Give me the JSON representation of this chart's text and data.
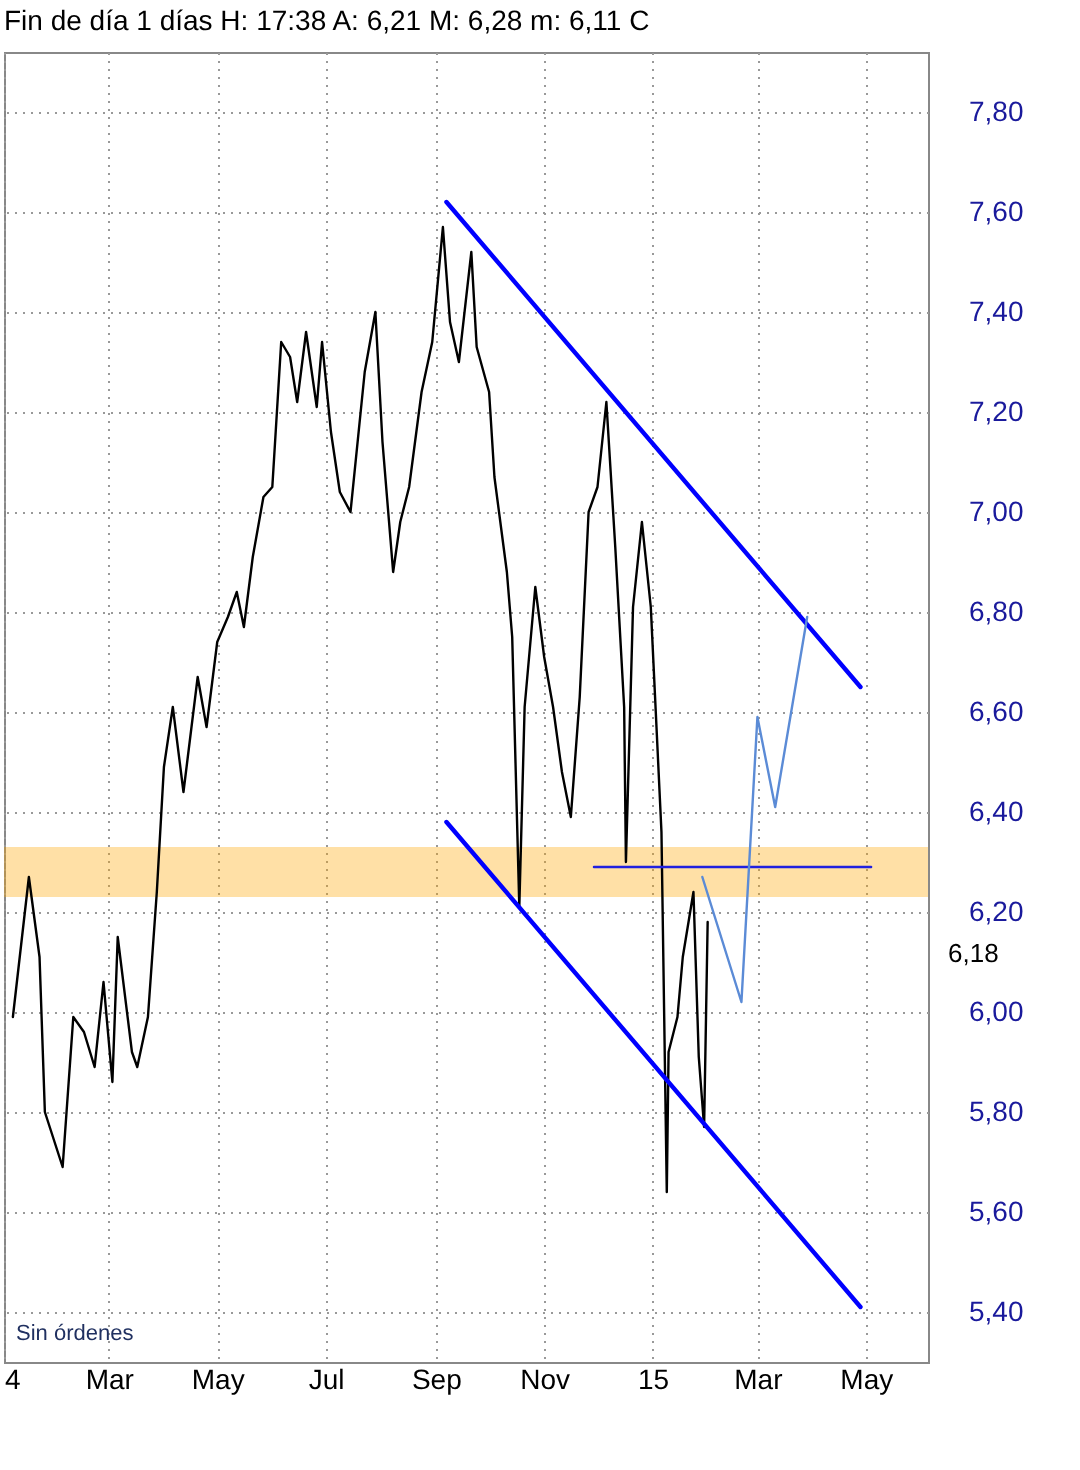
{
  "chart_data": {
    "type": "line",
    "title": "Fin de día 1 días H: 17:38 A: 6,21 M: 6,28 m: 6,11 C",
    "series": [
      {
        "color": "#000000",
        "x": [
          "2014-01-06",
          "2014-01-15",
          "2014-01-21",
          "2014-01-24",
          "2014-02-03",
          "2014-02-09",
          "2014-02-15",
          "2014-02-21",
          "2014-02-26",
          "2014-03-03",
          "2014-03-06",
          "2014-03-14",
          "2014-03-17",
          "2014-03-23",
          "2014-03-28",
          "2014-04-01",
          "2014-04-06",
          "2014-04-12",
          "2014-04-20",
          "2014-04-25",
          "2014-05-01",
          "2014-05-07",
          "2014-05-12",
          "2014-05-16",
          "2014-05-21",
          "2014-05-27",
          "2014-06-01",
          "2014-06-06",
          "2014-06-11",
          "2014-06-15",
          "2014-06-20",
          "2014-06-26",
          "2014-06-29",
          "2014-07-04",
          "2014-07-09",
          "2014-07-15",
          "2014-07-23",
          "2014-07-29",
          "2014-08-02",
          "2014-08-08",
          "2014-08-12",
          "2014-08-17",
          "2014-08-24",
          "2014-08-30",
          "2014-09-05",
          "2014-09-09",
          "2014-09-14",
          "2014-09-21",
          "2014-09-24",
          "2014-10-01",
          "2014-10-04",
          "2014-10-11",
          "2014-10-14",
          "2014-10-18",
          "2014-10-21",
          "2014-10-27",
          "2014-11-01",
          "2014-11-06",
          "2014-11-11",
          "2014-11-16",
          "2014-11-21",
          "2014-11-26",
          "2014-12-01",
          "2014-12-06",
          "2014-12-11",
          "2014-12-16",
          "2014-12-17",
          "2014-12-21",
          "2014-12-26",
          "2014-12-31",
          "2015-01-04",
          "2015-01-06",
          "2015-01-09",
          "2015-01-10",
          "2015-01-15",
          "2015-01-18",
          "2015-01-24",
          "2015-01-27",
          "2015-01-30",
          "2015-02-01"
        ],
        "values": [
          5.99,
          6.27,
          6.11,
          5.8,
          5.69,
          5.99,
          5.96,
          5.89,
          6.06,
          5.86,
          6.15,
          5.92,
          5.89,
          5.99,
          6.24,
          6.49,
          6.61,
          6.44,
          6.67,
          6.57,
          6.74,
          6.79,
          6.84,
          6.77,
          6.91,
          7.03,
          7.05,
          7.34,
          7.31,
          7.22,
          7.36,
          7.21,
          7.34,
          7.16,
          7.04,
          7.0,
          7.28,
          7.4,
          7.14,
          6.88,
          6.98,
          7.05,
          7.24,
          7.34,
          7.57,
          7.38,
          7.3,
          7.52,
          7.33,
          7.24,
          7.07,
          6.88,
          6.75,
          6.21,
          6.61,
          6.85,
          6.71,
          6.61,
          6.48,
          6.39,
          6.63,
          7.0,
          7.05,
          7.22,
          6.93,
          6.61,
          6.3,
          6.81,
          6.98,
          6.81,
          6.51,
          6.36,
          5.64,
          5.92,
          5.99,
          6.11,
          6.24,
          5.91,
          5.77,
          6.18
        ]
      },
      {
        "color": "#0000ff",
        "x": [
          "2014-09-07",
          "2015-04-28"
        ],
        "values": [
          7.62,
          6.65
        ]
      },
      {
        "color": "#0000ff",
        "x": [
          "2014-09-07",
          "2015-04-28"
        ],
        "values": [
          6.38,
          5.41
        ]
      },
      {
        "color": "#2020e0",
        "x": [
          "2014-11-29",
          "2015-05-04"
        ],
        "values": [
          6.29,
          6.29
        ]
      },
      {
        "color": "#5b8bd6",
        "x": [
          "2015-01-29",
          "2015-02-20",
          "2015-03-01",
          "2015-03-11",
          "2015-03-29"
        ],
        "values": [
          6.27,
          6.02,
          6.59,
          6.41,
          6.79
        ]
      }
    ],
    "bands": [
      {
        "axis": "y",
        "from": 6.23,
        "to": 6.33,
        "color": "#ffa500"
      }
    ],
    "annotations": [
      "Sin órdenes",
      "6,18"
    ],
    "xlim": [
      "2014-01-01",
      "2015-06-05"
    ],
    "xticks": [
      {
        "value": "2014-01-01",
        "label": "4"
      },
      {
        "value": "2014-03-01",
        "label": "Mar"
      },
      {
        "value": "2014-05-01",
        "label": "May"
      },
      {
        "value": "2014-07-01",
        "label": "Jul"
      },
      {
        "value": "2014-09-01",
        "label": "Sep"
      },
      {
        "value": "2014-11-01",
        "label": "Nov"
      },
      {
        "value": "2015-01-01",
        "label": "15"
      },
      {
        "value": "2015-03-01",
        "label": "Mar"
      },
      {
        "value": "2015-05-01",
        "label": "May"
      }
    ],
    "ylim": [
      5.3,
      7.92
    ],
    "yticks": [
      {
        "value": 5.4,
        "label": "5,40"
      },
      {
        "value": 5.6,
        "label": "5,60"
      },
      {
        "value": 5.8,
        "label": "5,80"
      },
      {
        "value": 6.0,
        "label": "6,00"
      },
      {
        "value": 6.2,
        "label": "6,20"
      },
      {
        "value": 6.4,
        "label": "6,40"
      },
      {
        "value": 6.6,
        "label": "6,60"
      },
      {
        "value": 6.8,
        "label": "6,80"
      },
      {
        "value": 7.0,
        "label": "7,00"
      },
      {
        "value": 7.2,
        "label": "7,20"
      },
      {
        "value": 7.4,
        "label": "7,40"
      },
      {
        "value": 7.6,
        "label": "7,60"
      },
      {
        "value": 7.8,
        "label": "7,80"
      }
    ],
    "grid": true
  }
}
